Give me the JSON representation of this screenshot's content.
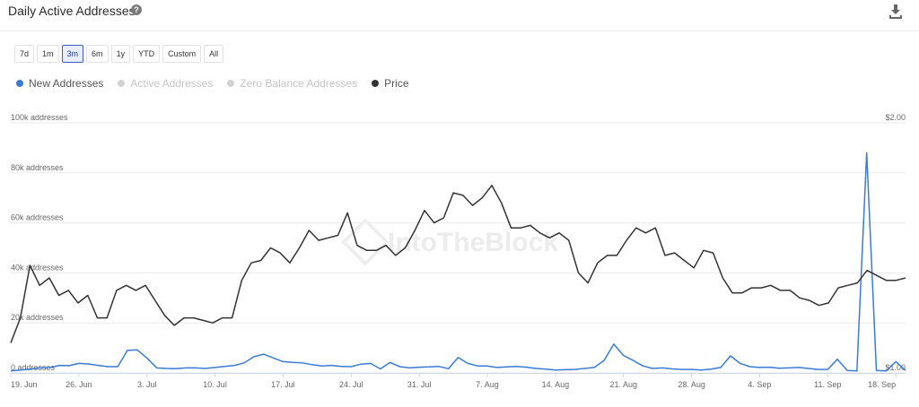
{
  "header": {
    "title": "Daily Active Addresses",
    "help_icon": "question-icon",
    "download_icon": "download-icon"
  },
  "ranges": {
    "items": [
      {
        "label": "7d",
        "active": false
      },
      {
        "label": "1m",
        "active": false
      },
      {
        "label": "3m",
        "active": true
      },
      {
        "label": "6m",
        "active": false
      },
      {
        "label": "1y",
        "active": false
      },
      {
        "label": "YTD",
        "active": false
      },
      {
        "label": "Custom",
        "active": false
      },
      {
        "label": "All",
        "active": false
      }
    ]
  },
  "legend": {
    "items": [
      {
        "label": "New Addresses",
        "color": "#3a7bd5",
        "enabled": true
      },
      {
        "label": "Active Addresses",
        "color": "#d3d3d3",
        "enabled": false
      },
      {
        "label": "Zero Balance Addresses",
        "color": "#d3d3d3",
        "enabled": false
      },
      {
        "label": "Price",
        "color": "#333333",
        "enabled": true
      }
    ]
  },
  "watermark": "IntoTheBlock",
  "chart_data": {
    "type": "line",
    "title": "Daily Active Addresses",
    "x_tick_labels": [
      "19. Jun",
      "26. Jun",
      "3. Jul",
      "10. Jul",
      "17. Jul",
      "24. Jul",
      "31. Jul",
      "7. Aug",
      "14. Aug",
      "21. Aug",
      "28. Aug",
      "4. Sep",
      "11. Sep",
      "18. Sep"
    ],
    "y_left_ticks": [
      "0 addresses",
      "20k addresses",
      "40k addresses",
      "60k addresses",
      "80k addresses",
      "100k addresses"
    ],
    "y_left_values": [
      0,
      20000,
      40000,
      60000,
      80000,
      100000
    ],
    "y_right_ticks": [
      "$1.00",
      "$2.00"
    ],
    "y_right_values": [
      1.0,
      2.0
    ],
    "ylim_left": [
      0,
      100000
    ],
    "ylim_right": [
      1.0,
      2.0
    ],
    "grid": true,
    "legend_position": "top-left",
    "series": [
      {
        "name": "New Addresses",
        "axis": "left",
        "color": "#3a7bd5",
        "values": [
          800,
          1200,
          1500,
          2000,
          2100,
          3000,
          2900,
          3800,
          3600,
          3000,
          2500,
          2500,
          9000,
          9200,
          6000,
          2000,
          1800,
          1700,
          2000,
          2000,
          1800,
          2200,
          2600,
          3000,
          4000,
          6500,
          7500,
          6000,
          4500,
          4200,
          4000,
          3300,
          2800,
          3000,
          2600,
          2500,
          3500,
          3800,
          1600,
          4200,
          2500,
          2000,
          2300,
          2400,
          2600,
          1700,
          6200,
          3800,
          2800,
          2800,
          2200,
          2400,
          2600,
          2300,
          1800,
          1500,
          1200,
          1300,
          1400,
          1800,
          2200,
          5000,
          11500,
          7000,
          5000,
          2800,
          1800,
          2000,
          1600,
          1400,
          1400,
          1200,
          1500,
          2200,
          6800,
          3800,
          2500,
          2200,
          2300,
          1900,
          2000,
          2200,
          1800,
          1400,
          1400,
          5500,
          1000,
          800,
          88000,
          1000,
          800,
          4500,
          1000
        ]
      },
      {
        "name": "Price",
        "axis": "right",
        "color": "#333333",
        "values": [
          1.12,
          1.22,
          1.43,
          1.35,
          1.38,
          1.31,
          1.33,
          1.28,
          1.31,
          1.22,
          1.22,
          1.33,
          1.35,
          1.33,
          1.35,
          1.29,
          1.23,
          1.19,
          1.22,
          1.22,
          1.21,
          1.2,
          1.22,
          1.22,
          1.37,
          1.44,
          1.45,
          1.5,
          1.48,
          1.44,
          1.5,
          1.57,
          1.53,
          1.54,
          1.55,
          1.64,
          1.51,
          1.49,
          1.49,
          1.51,
          1.47,
          1.5,
          1.57,
          1.65,
          1.6,
          1.62,
          1.72,
          1.71,
          1.67,
          1.7,
          1.75,
          1.68,
          1.58,
          1.58,
          1.59,
          1.56,
          1.54,
          1.56,
          1.53,
          1.4,
          1.36,
          1.44,
          1.47,
          1.47,
          1.53,
          1.58,
          1.56,
          1.58,
          1.47,
          1.48,
          1.45,
          1.42,
          1.49,
          1.48,
          1.38,
          1.32,
          1.32,
          1.34,
          1.34,
          1.35,
          1.33,
          1.33,
          1.3,
          1.29,
          1.27,
          1.28,
          1.34,
          1.35,
          1.36,
          1.41,
          1.39,
          1.37,
          1.37,
          1.38
        ]
      }
    ]
  }
}
